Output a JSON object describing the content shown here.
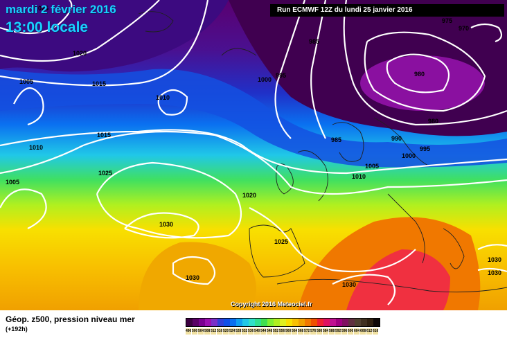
{
  "header": {
    "date": "mardi 2 février 2016",
    "time": "13:00 locale",
    "run": "Run ECMWF 12Z du lundi 25 janvier 2016"
  },
  "copyright": "Copyright 2016 Meteociel.fr",
  "footer": {
    "title": "Géop. z500, pression niveau mer",
    "subtitle": "(+192h)"
  },
  "isobar_labels": [
    "1025",
    "1020",
    "1005",
    "1015",
    "1010",
    "1010",
    "1015",
    "1005",
    "1000",
    "995",
    "985",
    "975",
    "970",
    "980",
    "980",
    "985",
    "990",
    "995",
    "1000",
    "1005",
    "1010",
    "1025",
    "1020",
    "1030",
    "1025",
    "1030",
    "1030",
    "1030",
    "1030"
  ],
  "legend": {
    "values": [
      "496",
      "500",
      "504",
      "508",
      "512",
      "516",
      "520",
      "524",
      "528",
      "532",
      "536",
      "540",
      "544",
      "548",
      "552",
      "556",
      "560",
      "564",
      "568",
      "572",
      "576",
      "580",
      "584",
      "588",
      "592",
      "596",
      "600",
      "604",
      "608",
      "612",
      "616"
    ],
    "colors": [
      "#3c0040",
      "#5a0066",
      "#7a0090",
      "#9a10b0",
      "#7a30c8",
      "#3040d8",
      "#1050e8",
      "#0a70f0",
      "#10a0f0",
      "#20c8e8",
      "#30e0c8",
      "#30e090",
      "#40e050",
      "#80f030",
      "#b0f020",
      "#e0f020",
      "#f8e000",
      "#f8c000",
      "#f0a000",
      "#f07800",
      "#f05000",
      "#f02030",
      "#e01060",
      "#c01090",
      "#a00080",
      "#801060",
      "#603040",
      "#504030",
      "#403020",
      "#302010",
      "#100808"
    ]
  }
}
